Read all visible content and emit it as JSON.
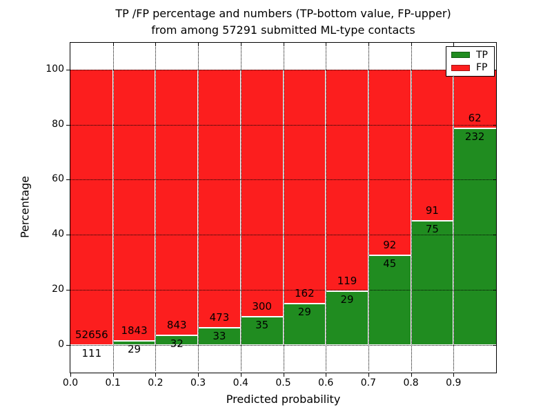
{
  "title": {
    "line1": "TP /FP percentage and numbers (TP-bottom value, FP-upper)",
    "line2": "from among 57291 submitted ML-type contacts"
  },
  "axes": {
    "xlabel": "Predicted probability",
    "ylabel": "Percentage"
  },
  "legend": {
    "entries": [
      {
        "label": "TP",
        "color": "#208c20"
      },
      {
        "label": "FP",
        "color": "#fc1e1e"
      }
    ]
  },
  "colors": {
    "tp_green": "#208c20",
    "fp_red": "#fc1e1e",
    "grid": "#000000",
    "frame": "#000000",
    "bar_edge": "#ffffff",
    "background": "#ffffff",
    "text": "#000000"
  },
  "chart_data": {
    "type": "bar",
    "stacked": true,
    "normalized_to_percent": true,
    "title": "TP /FP percentage and numbers (TP-bottom value, FP-upper) from among 57291 submitted ML-type contacts",
    "xlabel": "Predicted probability",
    "ylabel": "Percentage",
    "xlim": [
      0.0,
      1.0
    ],
    "ylim": [
      -10,
      110
    ],
    "bar_width": 0.1,
    "grid": "dotted, both axes",
    "legend_position": "upper right",
    "total_contacts": 57291,
    "x_ticks": [
      "0.0",
      "0.1",
      "0.2",
      "0.3",
      "0.4",
      "0.5",
      "0.6",
      "0.7",
      "0.8",
      "0.9"
    ],
    "y_ticks": [
      "0",
      "20",
      "40",
      "60",
      "80",
      "100"
    ],
    "bins": [
      "0.0-0.1",
      "0.1-0.2",
      "0.2-0.3",
      "0.3-0.4",
      "0.4-0.5",
      "0.5-0.6",
      "0.6-0.7",
      "0.7-0.8",
      "0.8-0.9",
      "0.9-1.0"
    ],
    "series": [
      {
        "name": "TP",
        "color": "#208c20",
        "counts": [
          111,
          29,
          32,
          33,
          35,
          29,
          29,
          45,
          75,
          232
        ],
        "percent": [
          0.21,
          1.55,
          3.66,
          6.52,
          10.45,
          15.18,
          19.59,
          32.85,
          45.18,
          78.91
        ]
      },
      {
        "name": "FP",
        "color": "#fc1e1e",
        "counts": [
          52656,
          1843,
          843,
          473,
          300,
          162,
          119,
          92,
          91,
          62
        ],
        "percent": [
          99.79,
          98.45,
          96.34,
          93.48,
          89.55,
          84.82,
          80.41,
          67.15,
          54.82,
          21.09
        ]
      }
    ]
  }
}
